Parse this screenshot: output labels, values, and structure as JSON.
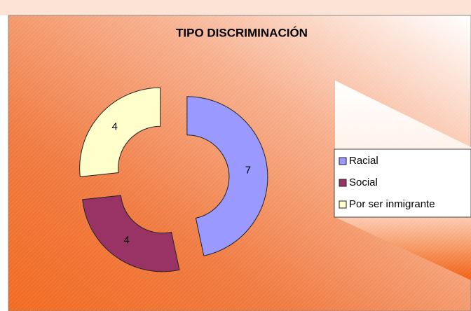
{
  "chart_data": {
    "type": "doughnut",
    "title": "TIPO DISCRIMINACIÓN",
    "categories": [
      "Racial",
      "Social",
      "Por ser inmigrante"
    ],
    "values": [
      7,
      4,
      4
    ],
    "colors": [
      "#9999ff",
      "#993366",
      "#ffffcc"
    ],
    "legend": "right"
  }
}
